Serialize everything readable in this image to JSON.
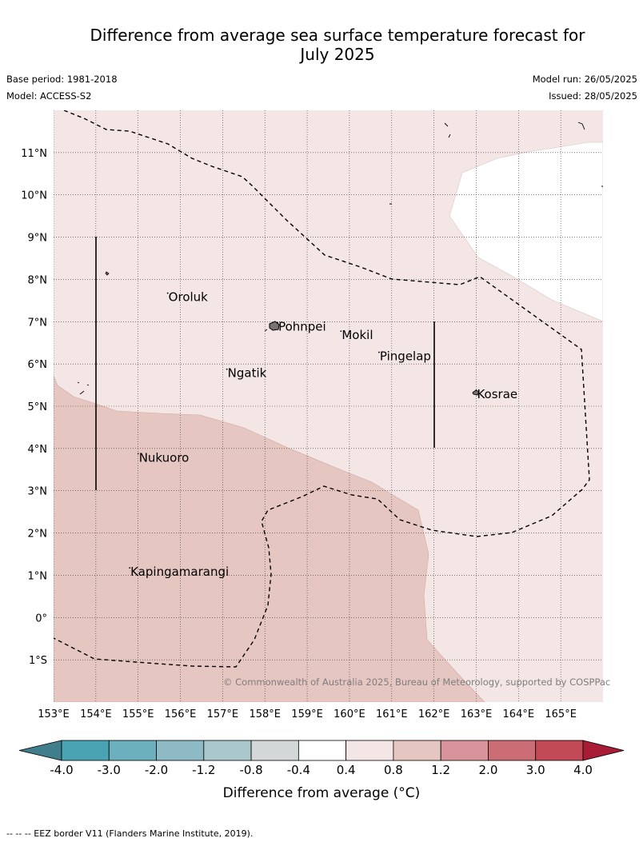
{
  "title_line1": "Difference from average sea surface temperature forecast for",
  "title_line2": "July 2025",
  "base_period": "Base period: 1981-2018",
  "model": "Model: ACCESS-S2",
  "model_run": "Model run: 26/05/2025",
  "issued": "Issued: 28/05/2025",
  "copyright": "© Commonwealth of Australia 2025, Bureau of Meteorology, supported by COSPPac",
  "footer": "-- -- -- EEZ border V11 (Flanders Marine Institute, 2019).",
  "map": {
    "lon_labels": [
      "153°E",
      "154°E",
      "155°E",
      "156°E",
      "157°E",
      "158°E",
      "159°E",
      "160°E",
      "161°E",
      "162°E",
      "163°E",
      "164°E",
      "165°E"
    ],
    "lat_labels": [
      "11°N",
      "10°N",
      "9°N",
      "8°N",
      "7°N",
      "6°N",
      "5°N",
      "4°N",
      "3°N",
      "2°N",
      "1°N",
      "0°",
      "1°S"
    ],
    "lon_values": [
      153,
      154,
      155,
      156,
      157,
      158,
      159,
      160,
      161,
      162,
      163,
      164,
      165
    ],
    "lat_values": [
      11,
      10,
      9,
      8,
      7,
      6,
      5,
      4,
      3,
      2,
      1,
      0,
      -1
    ],
    "extent": {
      "lon_min": 153,
      "lon_max": 166,
      "lat_min": -2,
      "lat_max": 12
    },
    "places": [
      {
        "name": "Oroluk",
        "lon": 155.7,
        "lat": 7.6
      },
      {
        "name": "Pohnpei",
        "lon": 158.3,
        "lat": 6.9
      },
      {
        "name": "Mokil",
        "lon": 159.8,
        "lat": 6.7
      },
      {
        "name": "Pingelap",
        "lon": 160.7,
        "lat": 6.2
      },
      {
        "name": "Ngatik",
        "lon": 157.1,
        "lat": 5.8
      },
      {
        "name": "Kosrae",
        "lon": 163.0,
        "lat": 5.3
      },
      {
        "name": "Nukuoro",
        "lon": 155.0,
        "lat": 3.8
      },
      {
        "name": "Kapingamarangi",
        "lon": 154.8,
        "lat": 1.1
      }
    ]
  },
  "colorbar": {
    "ticks": [
      "-4.0",
      "-3.0",
      "-2.0",
      "-1.2",
      "-0.8",
      "-0.4",
      "0.4",
      "0.8",
      "1.2",
      "2.0",
      "3.0",
      "4.0"
    ],
    "colors": [
      "#4aa3b3",
      "#6cb0bd",
      "#8dbac5",
      "#aac8cc",
      "#d4d7d7",
      "#ffffff",
      "#f3e6e5",
      "#e6c6c1",
      "#d8939a",
      "#cc6d76",
      "#c24a57"
    ],
    "low_extend_color": "#3f7e8a",
    "high_extend_color": "#a91c36",
    "label": "Difference from average (°C)"
  },
  "colors": {
    "band_0_4_to_0_8": "#f3e6e5",
    "band_0_8_to_1_2": "#e6c6c1",
    "neutral": "#ffffff"
  }
}
